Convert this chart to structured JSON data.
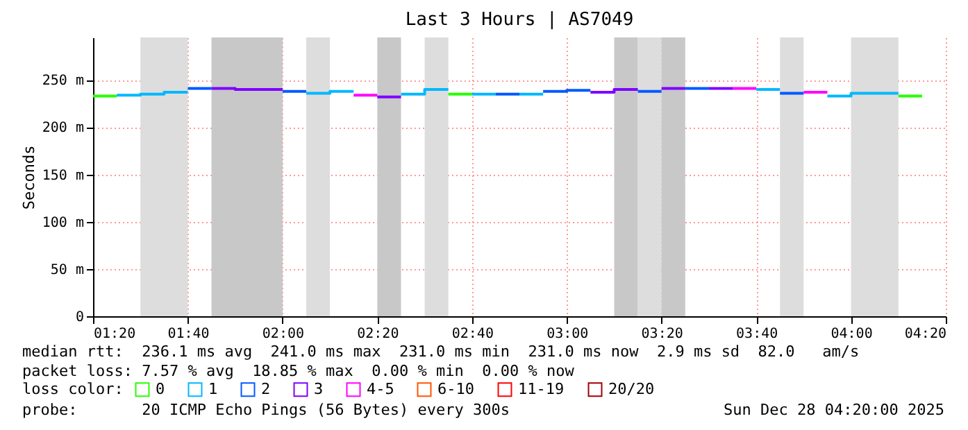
{
  "chart_data": {
    "type": "line",
    "title": "Last 3 Hours | AS7049",
    "ylabel": "Seconds",
    "series": [
      {
        "name": "0",
        "color": "#26ff00",
        "x": [
          1.3333,
          1.4167,
          2.0,
          2.5833,
          2.6667,
          3.5,
          4.1667,
          4.25
        ],
        "values": [
          233,
          233,
          null,
          235,
          235,
          null,
          233,
          233
        ]
      },
      {
        "name": "1",
        "color": "#00b8ff",
        "x": [
          1.4167,
          1.5,
          1.5,
          1.5833,
          1.5833,
          1.6667,
          1.8,
          2.0833,
          2.1667,
          2.1667,
          2.25,
          2.3,
          2.4167,
          2.5,
          2.5,
          2.5833,
          2.62,
          2.6667,
          2.75,
          2.8,
          2.8333,
          2.9167,
          3.2,
          3.6667,
          3.75,
          3.8,
          3.9167,
          4.0,
          4.0,
          4.1667
        ],
        "values": [
          234,
          234,
          235,
          235,
          237,
          237,
          null,
          236,
          236,
          238,
          238,
          null,
          235,
          235,
          240,
          240,
          null,
          235,
          235,
          null,
          235,
          235,
          null,
          240,
          240,
          null,
          233,
          233,
          236,
          236
        ]
      },
      {
        "name": "2",
        "color": "#0059ff",
        "x": [
          1.6667,
          1.75,
          1.8,
          2.0,
          2.0833,
          2.3,
          2.75,
          2.8333,
          2.88,
          2.9167,
          3.0,
          3.0,
          3.0833,
          3.12,
          3.25,
          3.3333,
          3.37,
          3.4167,
          3.5,
          3.6,
          3.75,
          3.8333
        ],
        "values": [
          241,
          241,
          null,
          238,
          238,
          null,
          235,
          235,
          null,
          238,
          238,
          239,
          239,
          null,
          238,
          238,
          null,
          241,
          241,
          null,
          236,
          236
        ]
      },
      {
        "name": "3",
        "color": "#7e00ff",
        "x": [
          1.75,
          1.8333,
          1.8333,
          2.0,
          2.2,
          2.3333,
          2.4167,
          2.8,
          3.0833,
          3.1667,
          3.1667,
          3.25,
          3.29,
          3.3333,
          3.4167,
          3.46,
          3.5,
          3.5833
        ],
        "values": [
          241,
          241,
          240,
          240,
          null,
          232,
          232,
          null,
          237,
          237,
          240,
          240,
          null,
          241,
          241,
          null,
          241,
          241
        ]
      },
      {
        "name": "4-5",
        "color": "#ff00ff",
        "x": [
          2.25,
          2.3333,
          3.0,
          3.5833,
          3.6667,
          3.7,
          3.8333,
          3.9167
        ],
        "values": [
          234,
          234,
          null,
          241,
          241,
          null,
          237,
          237
        ]
      },
      {
        "name": "6-10",
        "color": "#ff5500"
      },
      {
        "name": "11-19",
        "color": "#ff0000"
      },
      {
        "name": "20/20",
        "color": "#a10000"
      }
    ],
    "bands": [
      {
        "axis": "x",
        "from": 1.5,
        "to": 1.6667,
        "color": "#dddddd"
      },
      {
        "axis": "x",
        "from": 1.75,
        "to": 2.0,
        "color": "#c8c8c8"
      },
      {
        "axis": "x",
        "from": 2.0833,
        "to": 2.1667,
        "color": "#dddddd"
      },
      {
        "axis": "x",
        "from": 2.3333,
        "to": 2.4167,
        "color": "#c8c8c8"
      },
      {
        "axis": "x",
        "from": 2.5,
        "to": 2.5833,
        "color": "#dddddd"
      },
      {
        "axis": "x",
        "from": 3.1667,
        "to": 3.25,
        "color": "#c8c8c8"
      },
      {
        "axis": "x",
        "from": 3.25,
        "to": 3.3333,
        "color": "#dddddd"
      },
      {
        "axis": "x",
        "from": 3.3333,
        "to": 3.4167,
        "color": "#c8c8c8"
      },
      {
        "axis": "x",
        "from": 3.75,
        "to": 3.8333,
        "color": "#dddddd"
      },
      {
        "axis": "x",
        "from": 4.0,
        "to": 4.1667,
        "color": "#dddddd"
      }
    ],
    "xlim": [
      1.3333,
      4.3333
    ],
    "xticks": [
      {
        "value": 1.3333,
        "label": "01:20"
      },
      {
        "value": 1.6667,
        "label": "01:40"
      },
      {
        "value": 2.0,
        "label": "02:00"
      },
      {
        "value": 2.3333,
        "label": "02:20"
      },
      {
        "value": 2.6667,
        "label": "02:40"
      },
      {
        "value": 3.0,
        "label": "03:00"
      },
      {
        "value": 3.3333,
        "label": "03:20"
      },
      {
        "value": 3.6667,
        "label": "03:40"
      },
      {
        "value": 4.0,
        "label": "04:00"
      },
      {
        "value": 4.3333,
        "label": "04:20"
      }
    ],
    "ylim": [
      0,
      295
    ],
    "yticks": [
      0,
      {
        "value": 50,
        "label": "50 m"
      },
      {
        "value": 100,
        "label": "100 m"
      },
      {
        "value": 150,
        "label": "150 m"
      },
      {
        "value": 200,
        "label": "200 m"
      },
      {
        "value": 250,
        "label": "250 m"
      }
    ],
    "grid": true,
    "legend": "bottom",
    "legend_title": "loss color:",
    "annotations": [
      "median rtt:  236.1 ms avg  241.0 ms max  231.0 ms min  231.0 ms now  2.9 ms sd  82.0   am/s",
      "packet loss: 7.57 % avg  18.85 % max  0.00 % min  0.00 % now",
      "probe:       20 ICMP Echo Pings (56 Bytes) every 300s",
      "Sun Dec 28 04:20:00 2025"
    ]
  }
}
